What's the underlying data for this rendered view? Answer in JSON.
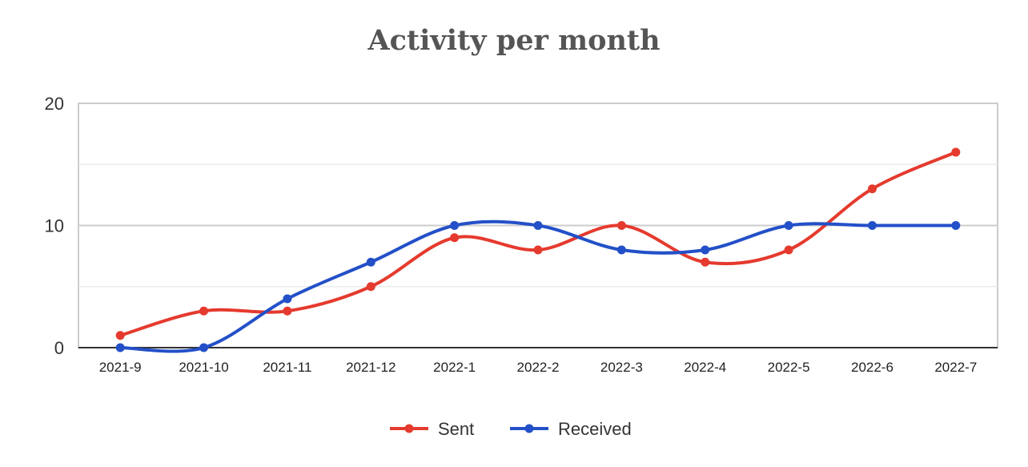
{
  "chart_data": {
    "type": "line",
    "title": "Activity per month",
    "xlabel": "",
    "ylabel": "",
    "categories": [
      "2021-9",
      "2021-10",
      "2021-11",
      "2021-12",
      "2022-1",
      "2022-2",
      "2022-3",
      "2022-4",
      "2022-5",
      "2022-6",
      "2022-7"
    ],
    "series": [
      {
        "name": "Sent",
        "color": "#e53a2e",
        "values": [
          1,
          3,
          3,
          5,
          9,
          8,
          10,
          7,
          8,
          13,
          16
        ]
      },
      {
        "name": "Received",
        "color": "#2350c8",
        "values": [
          0,
          0,
          4,
          7,
          10,
          10,
          8,
          8,
          10,
          10,
          10
        ]
      }
    ],
    "ylim": [
      0,
      20
    ],
    "yticks": [
      0,
      10,
      20
    ],
    "minor_gridlines": [
      5,
      15
    ],
    "smooth": true,
    "grid": true,
    "legend_position": "bottom"
  }
}
